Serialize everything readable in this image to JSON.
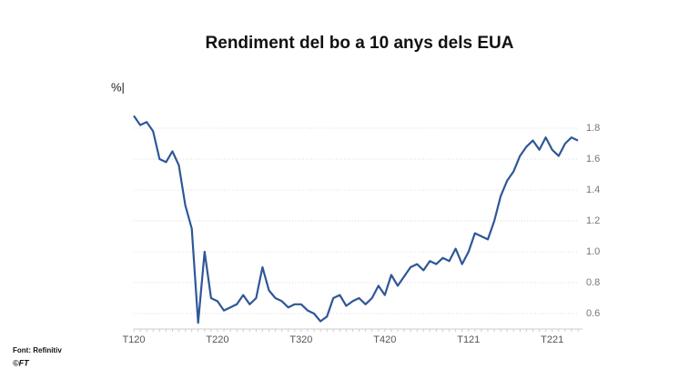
{
  "chart_data": {
    "type": "line",
    "title": "Rendiment del bo a 10 anys dels EUA",
    "y_label": "%|",
    "source": "Font: Refinitiv",
    "copyright": "©FT",
    "categories": [
      "T120",
      null,
      null,
      null,
      null,
      null,
      null,
      null,
      null,
      null,
      null,
      null,
      null,
      "T220",
      null,
      null,
      null,
      null,
      null,
      null,
      null,
      null,
      null,
      null,
      null,
      null,
      "T320",
      null,
      null,
      null,
      null,
      null,
      null,
      null,
      null,
      null,
      null,
      null,
      null,
      "T420",
      null,
      null,
      null,
      null,
      null,
      null,
      null,
      null,
      null,
      null,
      null,
      null,
      "T121",
      null,
      null,
      null,
      null,
      null,
      null,
      null,
      null,
      null,
      null,
      null,
      null,
      "T221",
      null,
      null,
      null,
      null
    ],
    "series": [
      {
        "name": "Rendiment",
        "color": "#2f5797",
        "values": [
          1.88,
          1.82,
          1.84,
          1.78,
          1.6,
          1.58,
          1.65,
          1.56,
          1.3,
          1.15,
          0.54,
          1.0,
          0.7,
          0.68,
          0.62,
          0.64,
          0.66,
          0.72,
          0.66,
          0.7,
          0.9,
          0.75,
          0.7,
          0.68,
          0.64,
          0.66,
          0.66,
          0.62,
          0.6,
          0.55,
          0.58,
          0.7,
          0.72,
          0.65,
          0.68,
          0.7,
          0.66,
          0.7,
          0.78,
          0.72,
          0.85,
          0.78,
          0.84,
          0.9,
          0.92,
          0.88,
          0.94,
          0.92,
          0.96,
          0.94,
          1.02,
          0.92,
          1.0,
          1.12,
          1.1,
          1.08,
          1.2,
          1.36,
          1.46,
          1.52,
          1.62,
          1.68,
          1.72,
          1.66,
          1.74,
          1.66,
          1.62,
          1.7,
          1.74,
          1.72
        ]
      }
    ],
    "ylim": [
      0.5,
      1.9
    ],
    "yticks": [
      0.6,
      0.8,
      {
        "value": 1,
        "label": "1.0"
      },
      1.2,
      1.4,
      1.6,
      1.8
    ],
    "grid": true
  }
}
